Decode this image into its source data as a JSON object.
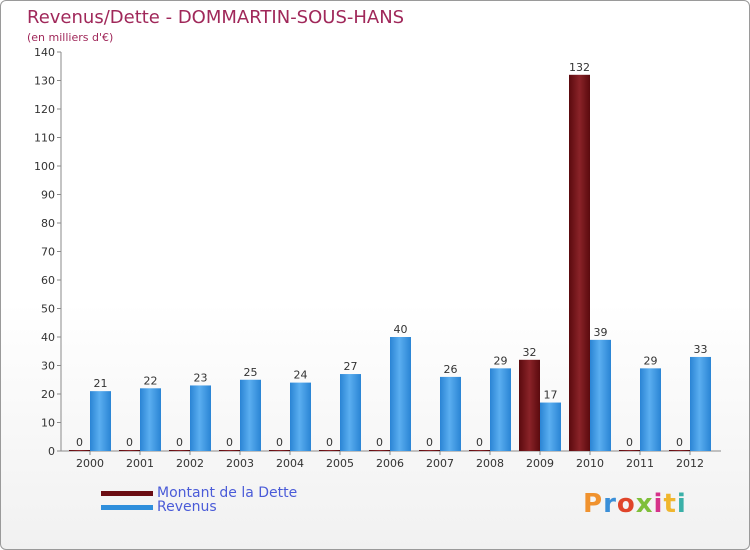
{
  "header": {
    "title": "Revenus/Dette - DOMMARTIN-SOUS-HANS",
    "subtitle": "(en milliers d'€)"
  },
  "legend": {
    "dette_label": "Montant de la Dette",
    "revenus_label": "Revenus"
  },
  "logo": {
    "text": "Proxiti"
  },
  "colors": {
    "dette": "#6b0d12",
    "dette_light": "#9a2e33",
    "revenus": "#2f8fdc",
    "revenus_light": "#6bb7f2",
    "title": "#a0285a",
    "legend_text": "#4a5bd8"
  },
  "chart_data": {
    "type": "bar",
    "title": "Revenus/Dette - DOMMARTIN-SOUS-HANS",
    "ylabel": "(en milliers d'€)",
    "xlabel": "",
    "ylim": [
      0,
      140
    ],
    "yticks": [
      0,
      10,
      20,
      30,
      40,
      50,
      60,
      70,
      80,
      90,
      100,
      110,
      120,
      130,
      140
    ],
    "grid": false,
    "legend_position": "bottom-left",
    "categories": [
      "2000",
      "2001",
      "2002",
      "2003",
      "2004",
      "2005",
      "2006",
      "2007",
      "2008",
      "2009",
      "2010",
      "2011",
      "2012"
    ],
    "series": [
      {
        "name": "Montant de la Dette",
        "values": [
          0,
          0,
          0,
          0,
          0,
          0,
          0,
          0,
          0,
          32,
          132,
          0,
          0
        ]
      },
      {
        "name": "Revenus",
        "values": [
          21,
          22,
          23,
          25,
          24,
          27,
          40,
          26,
          29,
          17,
          39,
          29,
          33
        ]
      }
    ]
  }
}
